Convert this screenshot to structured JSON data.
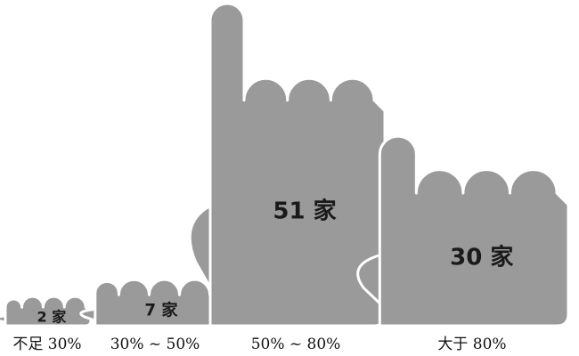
{
  "chart_data": {
    "type": "bar",
    "style": "pictograph-hands",
    "categories": [
      "不足 30%",
      "30% ~ 50%",
      "50% ~ 80%",
      "大于 80%"
    ],
    "values": [
      2,
      7,
      51,
      30
    ],
    "unit": "家",
    "data_labels": [
      "2 家",
      "7 家",
      "51 家",
      "30 家"
    ],
    "colors": {
      "bar": "#9a9a9a",
      "text": "#1a1a1a",
      "background": "#ffffff"
    },
    "title": "",
    "xlabel": "",
    "ylabel": "",
    "grid": false,
    "legend": "none"
  }
}
